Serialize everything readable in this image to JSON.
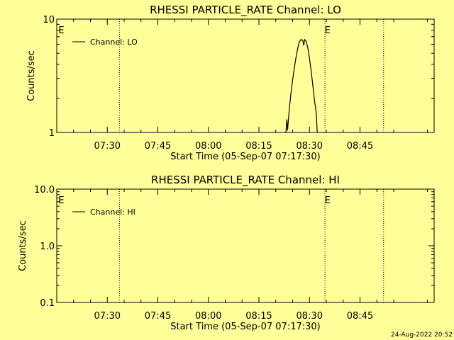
{
  "footer": {
    "timestamp": "24-Aug-2022 20:52"
  },
  "colors": {
    "background": "#ffff99",
    "ink": "#000000"
  },
  "chart_data": [
    {
      "type": "line",
      "title": "RHESSI PARTICLE_RATE Channel: LO",
      "xlabel": "Start Time (05-Sep-07 07:17:30)",
      "ylabel": "Counts/sec",
      "yscale": "log",
      "ylim": [
        1,
        10
      ],
      "ytick_values": [
        1,
        10
      ],
      "ytick_labels": [
        "1",
        "10"
      ],
      "xlim_minutes": [
        435.0,
        547.0
      ],
      "xtick_values": [
        450,
        465,
        480,
        495,
        510,
        525
      ],
      "xtick_labels": [
        "07:30",
        "07:45",
        "08:00",
        "08:15",
        "08:30",
        "08:45"
      ],
      "legend": {
        "label": "Channel: LO",
        "position": "top-left"
      },
      "eclipse_markers": {
        "label": "E",
        "x": [
          435.3,
          514.3
        ]
      },
      "dotted_lines_x": [
        453.6,
        514.6,
        532.0
      ],
      "series": [
        {
          "name": "Channel: LO",
          "x": [
            503.0,
            503.3,
            503.5,
            504.0,
            504.5,
            505.0,
            505.5,
            506.0,
            506.5,
            507.0,
            507.5,
            508.0,
            508.3,
            508.6,
            509.0,
            509.5,
            510.0,
            510.5,
            511.0,
            511.5,
            512.0,
            512.3
          ],
          "y": [
            1.0,
            1.3,
            1.05,
            1.6,
            2.2,
            2.9,
            3.7,
            4.6,
            5.5,
            6.3,
            6.6,
            6.5,
            5.9,
            6.6,
            6.4,
            5.6,
            4.5,
            3.5,
            2.6,
            1.9,
            1.5,
            1.0
          ]
        }
      ]
    },
    {
      "type": "line",
      "title": "RHESSI PARTICLE_RATE Channel: HI",
      "xlabel": "Start Time (05-Sep-07 07:17:30)",
      "ylabel": "Counts/sec",
      "yscale": "log",
      "ylim": [
        0.1,
        10.0
      ],
      "ytick_values": [
        0.1,
        1.0,
        10.0
      ],
      "ytick_labels": [
        "0.1",
        "1.0",
        "10.0"
      ],
      "xlim_minutes": [
        435.0,
        547.0
      ],
      "xtick_values": [
        450,
        465,
        480,
        495,
        510,
        525
      ],
      "xtick_labels": [
        "07:30",
        "07:45",
        "08:00",
        "08:15",
        "08:30",
        "08:45"
      ],
      "legend": {
        "label": "Channel: HI",
        "position": "top-left"
      },
      "eclipse_markers": {
        "label": "E",
        "x": [
          435.3,
          514.3
        ]
      },
      "dotted_lines_x": [
        453.6,
        514.6,
        532.0
      ],
      "series": [
        {
          "name": "Channel: HI",
          "x": [],
          "y": []
        }
      ]
    }
  ]
}
